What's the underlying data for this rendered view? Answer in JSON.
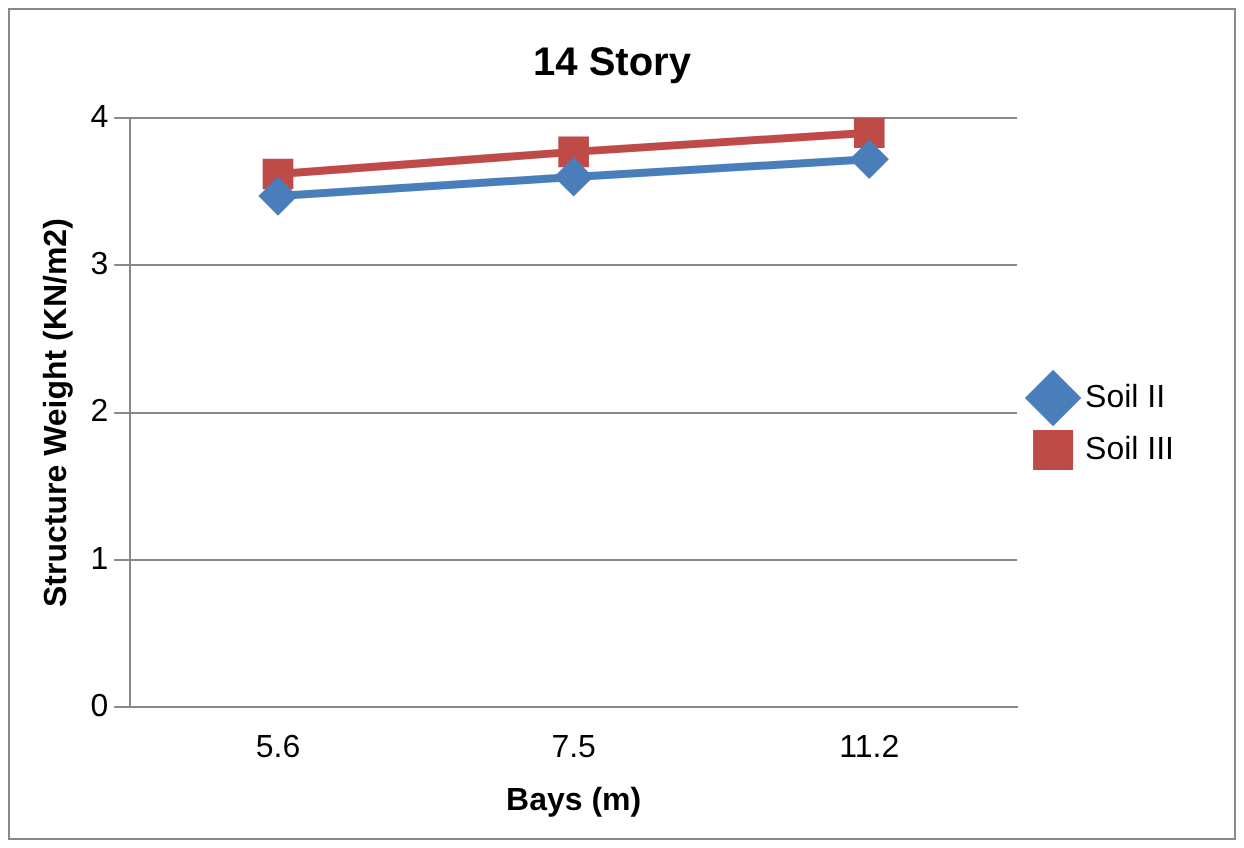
{
  "chart_data": {
    "type": "line",
    "title": "14 Story",
    "xlabel": "Bays (m)",
    "ylabel": "Structure Weight (KN/m2)",
    "categories": [
      "5.6",
      "7.5",
      "11.2"
    ],
    "series": [
      {
        "name": "Soil II",
        "color": "#4a7ebb",
        "values": [
          3.47,
          3.6,
          3.72
        ],
        "marker": "diamond"
      },
      {
        "name": "Soil III",
        "color": "#be4b48",
        "values": [
          3.62,
          3.77,
          3.9
        ],
        "marker": "square"
      }
    ],
    "ylim": [
      0,
      4
    ],
    "yticks": [
      0,
      1,
      2,
      3,
      4
    ],
    "grid": "y",
    "legend": "right"
  }
}
